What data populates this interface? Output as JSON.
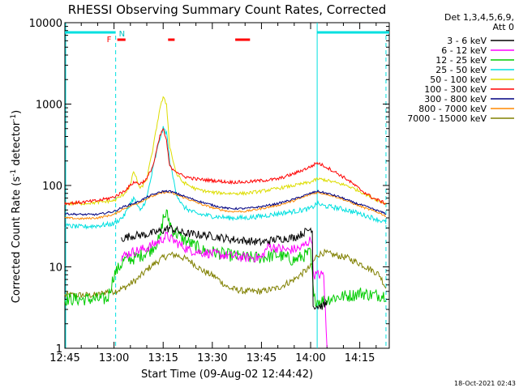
{
  "chart_data": {
    "type": "line",
    "title": "RHESSI Observing Summary Count Rates, Corrected",
    "xlabel": "Start Time (09-Aug-02 12:44:42)",
    "ylabel_main": "Corrected Count Rate (s",
    "ylabel_sup1": "-1",
    "ylabel_mid": " detector",
    "ylabel_sup2": "-1",
    "ylabel_end": ")",
    "y_scale": "log",
    "ylim": [
      1,
      10000
    ],
    "xlim_minutes": [
      0,
      99
    ],
    "x_ticks": [
      {
        "t": 0,
        "label": "12:45"
      },
      {
        "t": 15,
        "label": "13:00"
      },
      {
        "t": 30,
        "label": "13:15"
      },
      {
        "t": 45,
        "label": "13:30"
      },
      {
        "t": 60,
        "label": "13:45"
      },
      {
        "t": 75,
        "label": "14:00"
      },
      {
        "t": 90,
        "label": "14:15"
      }
    ],
    "y_ticks": [
      {
        "v": 1,
        "label": "1"
      },
      {
        "v": 10,
        "label": "10"
      },
      {
        "v": 100,
        "label": "100"
      },
      {
        "v": 1000,
        "label": "1000"
      },
      {
        "v": 10000,
        "label": "10000"
      }
    ],
    "legend": {
      "header1": "Det 1,3,4,5,6,9,",
      "header2": "Att 0",
      "position": "right"
    },
    "annotations": {
      "flare_flag": "F",
      "night_flag": "N",
      "footer_date": "18-Oct-2021 02:43"
    },
    "night_periods_minutes": [
      [
        -1,
        15.5
      ],
      [
        77,
        99
      ]
    ],
    "flare_periods_minutes": [
      [
        16,
        18.5
      ],
      [
        31.5,
        33.5
      ],
      [
        52,
        56.5
      ]
    ],
    "series": [
      {
        "name": "3 - 6 keV",
        "color": "#000000",
        "x": [
          0,
          15,
          17,
          20,
          25,
          30,
          32,
          36,
          40,
          45,
          50,
          55,
          60,
          65,
          70,
          72,
          74,
          75.5,
          75.6,
          77,
          79,
          80
        ],
        "y": [
          null,
          null,
          22,
          24,
          25,
          28,
          30,
          26,
          25,
          24,
          22,
          21,
          20,
          22,
          23,
          25,
          28,
          30,
          3.3,
          3.3,
          3.3,
          3.6
        ]
      },
      {
        "name": "6 - 12 keV",
        "color": "#ff00ff",
        "x": [
          0,
          15,
          17,
          20,
          25,
          29,
          31,
          34,
          38,
          42,
          48,
          55,
          60,
          62,
          68,
          72,
          74,
          75.5,
          75.6,
          77,
          79,
          80
        ],
        "y": [
          null,
          null,
          13,
          15,
          17,
          21,
          24,
          20,
          16,
          15,
          14,
          13,
          13,
          18,
          16,
          17,
          20,
          22,
          8,
          8,
          8,
          1
        ]
      },
      {
        "name": "12 - 25 keV",
        "color": "#00cc00",
        "x": [
          0,
          3,
          8,
          13,
          15,
          18,
          22,
          26,
          29,
          30,
          31,
          33,
          36,
          42,
          50,
          55,
          60,
          65,
          70,
          75,
          76,
          78,
          82,
          88,
          90,
          94,
          98
        ],
        "y": [
          4,
          4,
          4,
          4,
          8,
          12,
          13,
          16,
          22,
          40,
          45,
          28,
          22,
          16,
          14,
          13,
          13,
          14,
          12,
          15,
          4,
          3.8,
          4.2,
          4.5,
          4.8,
          4.5,
          4.5
        ]
      },
      {
        "name": "25 - 50 keV",
        "color": "#00e0e0",
        "x": [
          0,
          5,
          10,
          15,
          18,
          20,
          21,
          23,
          25,
          27,
          29,
          30,
          31,
          32,
          34,
          36,
          40,
          45,
          50,
          55,
          60,
          65,
          70,
          75,
          77,
          79,
          82,
          86,
          90,
          94,
          98
        ],
        "y": [
          32,
          31,
          32,
          34,
          42,
          60,
          70,
          48,
          70,
          170,
          380,
          500,
          450,
          200,
          80,
          55,
          45,
          42,
          40,
          40,
          42,
          45,
          48,
          52,
          60,
          56,
          54,
          50,
          45,
          40,
          35
        ]
      },
      {
        "name": "50 - 100 keV",
        "color": "#dddd00",
        "x": [
          0,
          5,
          10,
          15,
          18,
          20,
          21,
          23,
          25,
          27,
          29,
          30,
          31,
          32,
          34,
          36,
          40,
          45,
          50,
          55,
          60,
          65,
          70,
          75,
          77,
          79,
          82,
          86,
          90,
          94,
          98
        ],
        "y": [
          60,
          60,
          62,
          65,
          78,
          100,
          150,
          90,
          120,
          300,
          900,
          1200,
          1000,
          300,
          140,
          110,
          90,
          82,
          80,
          80,
          85,
          92,
          100,
          110,
          120,
          118,
          110,
          100,
          85,
          70,
          60
        ]
      },
      {
        "name": "100 - 300 keV",
        "color": "#ff0000",
        "x": [
          0,
          5,
          10,
          15,
          18,
          20,
          21,
          23,
          25,
          27,
          29,
          30,
          31,
          32,
          34,
          36,
          40,
          45,
          50,
          55,
          60,
          65,
          70,
          75,
          77,
          79,
          82,
          86,
          90,
          94,
          98
        ],
        "y": [
          60,
          62,
          65,
          72,
          85,
          100,
          110,
          105,
          120,
          180,
          400,
          500,
          350,
          170,
          150,
          130,
          120,
          115,
          110,
          110,
          115,
          120,
          140,
          170,
          190,
          175,
          150,
          120,
          90,
          70,
          60
        ]
      },
      {
        "name": "300 - 800 keV",
        "color": "#000080",
        "x": [
          0,
          5,
          10,
          15,
          18,
          22,
          26,
          30,
          32,
          34,
          38,
          42,
          46,
          50,
          55,
          60,
          65,
          70,
          75,
          77,
          80,
          84,
          88,
          92,
          96,
          98
        ],
        "y": [
          45,
          44,
          44,
          48,
          55,
          62,
          75,
          85,
          85,
          80,
          70,
          62,
          56,
          52,
          52,
          55,
          60,
          68,
          80,
          85,
          80,
          72,
          62,
          55,
          48,
          45
        ]
      },
      {
        "name": "800 - 7000 keV",
        "color": "#ff8800",
        "x": [
          0,
          5,
          10,
          15,
          18,
          22,
          26,
          30,
          32,
          34,
          38,
          42,
          46,
          50,
          55,
          60,
          65,
          70,
          75,
          77,
          80,
          84,
          88,
          92,
          96,
          98
        ],
        "y": [
          40,
          39,
          40,
          44,
          52,
          60,
          72,
          82,
          82,
          77,
          67,
          58,
          52,
          48,
          48,
          52,
          57,
          65,
          78,
          82,
          78,
          70,
          60,
          52,
          46,
          42
        ]
      },
      {
        "name": "7000 - 15000 keV",
        "color": "#808000",
        "x": [
          0,
          5,
          10,
          13,
          15,
          18,
          22,
          26,
          30,
          32,
          34,
          38,
          42,
          46,
          50,
          55,
          60,
          65,
          70,
          75,
          77,
          79,
          82,
          86,
          90,
          94,
          96,
          98
        ],
        "y": [
          4.5,
          4.5,
          4.5,
          5,
          5,
          5.5,
          7,
          10,
          13,
          14,
          14,
          12,
          9,
          7.5,
          5.5,
          5,
          5,
          5.5,
          7,
          10,
          14,
          15,
          14,
          13,
          11,
          9,
          8,
          5.5
        ]
      }
    ]
  }
}
